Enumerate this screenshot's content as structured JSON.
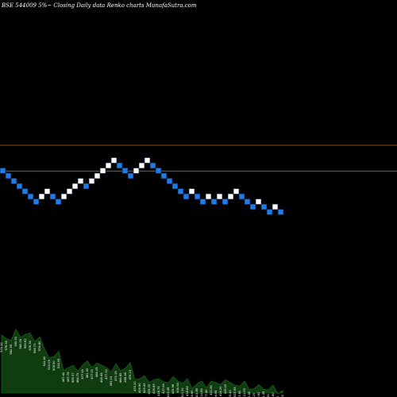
{
  "header": {
    "title": "BSE 544009 5%~  Closing Daily data  Renko  charts MunafaSutra.com"
  },
  "chart_data": {
    "type": "renko",
    "title": "BSE 544009 5%~  Closing Daily data  Renko  charts MunafaSutra.com",
    "y_range": [
      0,
      57
    ],
    "reference_lines": [
      {
        "y": 46,
        "color": "#d2691e"
      },
      {
        "y": 41,
        "color": "#d2691e"
      }
    ],
    "bricks": [
      {
        "dir": "down",
        "level": 41
      },
      {
        "dir": "down",
        "level": 40
      },
      {
        "dir": "down",
        "level": 39
      },
      {
        "dir": "down",
        "level": 38
      },
      {
        "dir": "down",
        "level": 37
      },
      {
        "dir": "down",
        "level": 36
      },
      {
        "dir": "down",
        "level": 35
      },
      {
        "dir": "up",
        "level": 36
      },
      {
        "dir": "up",
        "level": 37
      },
      {
        "dir": "down",
        "level": 36
      },
      {
        "dir": "down",
        "level": 35
      },
      {
        "dir": "up",
        "level": 36
      },
      {
        "dir": "up",
        "level": 37
      },
      {
        "dir": "up",
        "level": 38
      },
      {
        "dir": "up",
        "level": 39
      },
      {
        "dir": "down",
        "level": 38
      },
      {
        "dir": "up",
        "level": 39
      },
      {
        "dir": "up",
        "level": 40
      },
      {
        "dir": "up",
        "level": 41
      },
      {
        "dir": "up",
        "level": 42
      },
      {
        "dir": "up",
        "level": 43
      },
      {
        "dir": "down",
        "level": 42
      },
      {
        "dir": "down",
        "level": 41
      },
      {
        "dir": "down",
        "level": 40
      },
      {
        "dir": "up",
        "level": 41
      },
      {
        "dir": "up",
        "level": 42
      },
      {
        "dir": "up",
        "level": 43
      },
      {
        "dir": "down",
        "level": 42
      },
      {
        "dir": "down",
        "level": 41
      },
      {
        "dir": "down",
        "level": 40
      },
      {
        "dir": "down",
        "level": 39
      },
      {
        "dir": "down",
        "level": 38
      },
      {
        "dir": "down",
        "level": 37
      },
      {
        "dir": "down",
        "level": 36
      },
      {
        "dir": "up",
        "level": 37
      },
      {
        "dir": "down",
        "level": 36
      },
      {
        "dir": "down",
        "level": 35
      },
      {
        "dir": "up",
        "level": 36
      },
      {
        "dir": "down",
        "level": 35
      },
      {
        "dir": "up",
        "level": 36
      },
      {
        "dir": "down",
        "level": 35
      },
      {
        "dir": "up",
        "level": 36
      },
      {
        "dir": "up",
        "level": 37
      },
      {
        "dir": "down",
        "level": 36
      },
      {
        "dir": "down",
        "level": 35
      },
      {
        "dir": "down",
        "level": 34
      },
      {
        "dir": "up",
        "level": 35
      },
      {
        "dir": "down",
        "level": 34
      },
      {
        "dir": "down",
        "level": 33
      },
      {
        "dir": "up",
        "level": 34
      },
      {
        "dir": "down",
        "level": 33
      }
    ],
    "volume_labels": [
      "570.32",
      "576.50",
      "562.95",
      "590.50",
      "582.05",
      "583.62",
      "576.50",
      "566.73",
      "574.80",
      "522.40",
      "510.05",
      "506.90",
      "514.05",
      "467.40",
      "467.78",
      "465.37",
      "464.75",
      "477.40",
      "481.00",
      "477.20",
      "484.25",
      "465.45",
      "477.10",
      "453.15",
      "471.15",
      "464.85",
      "466.45",
      "475.15",
      "435.20",
      "429.80",
      "429.43",
      "425.35",
      "426.85",
      "418.75",
      "427.60",
      "415.45",
      "425.98",
      "430.60",
      "413.20",
      "418.65",
      "404.60",
      "411.85",
      "410.80",
      "407.40",
      "421.80",
      "404.65",
      "418.20",
      "426.10",
      "405.40",
      "415.55",
      "403.80",
      "411.05",
      "400.80",
      "395.20",
      "398.62",
      "401.45",
      "391.60",
      "396.80",
      "385.10",
      "389.30"
    ],
    "colors": {
      "background": "#000000",
      "up_brick": "#ffffff",
      "down_brick": "#1e7be8",
      "brick_outline": "#0a1a33",
      "reference_line": "#d2691e",
      "volume_fill": "#0f3d0f",
      "volume_line": "#1f6b1f",
      "text": "#ffffff"
    }
  }
}
